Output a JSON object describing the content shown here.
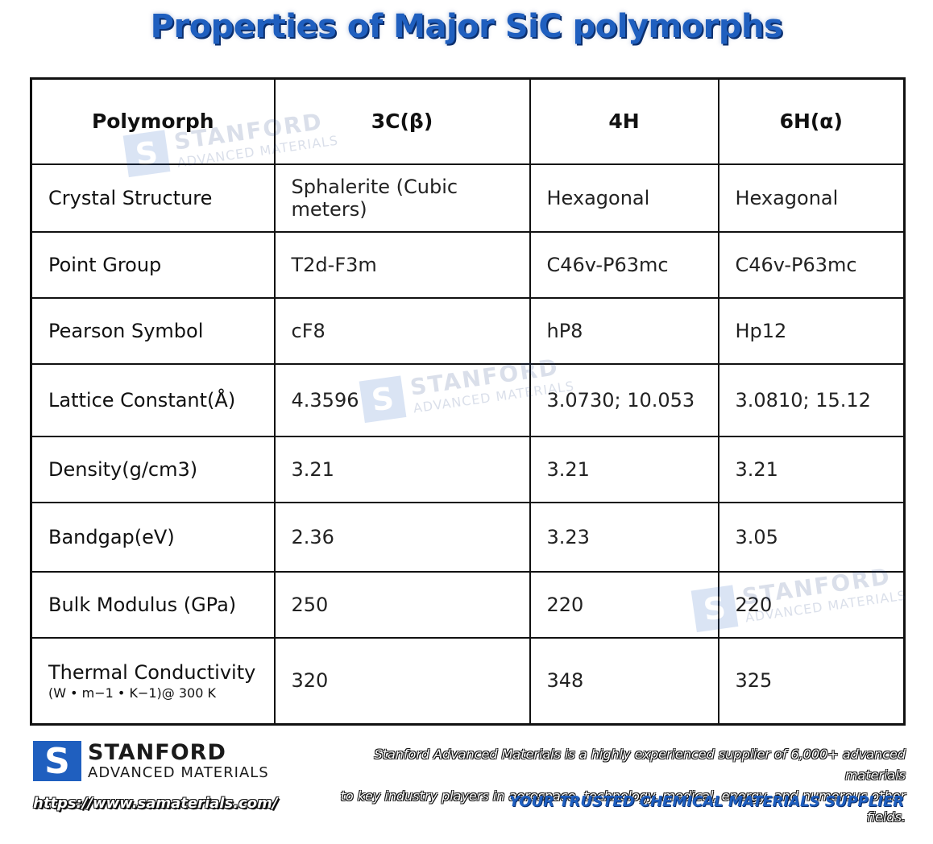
{
  "title": "Properties of Major SiC polymorphs",
  "table": {
    "headers": [
      "Polymorph",
      "3C(β)",
      "4H",
      "6H(α)"
    ],
    "rows": [
      {
        "label": "Crystal Structure",
        "values": [
          "Sphalerite (Cubic meters)",
          "Hexagonal",
          "Hexagonal"
        ]
      },
      {
        "label": "Point Group",
        "values": [
          "T2d-F3m",
          "C46v-P63mc",
          "C46v-P63mc"
        ]
      },
      {
        "label": "Pearson Symbol",
        "values": [
          "cF8",
          "hP8",
          "Hp12"
        ]
      },
      {
        "label": "Lattice Constant(Å)",
        "values": [
          "4.3596",
          "3.0730; 10.053",
          "3.0810; 15.12"
        ]
      },
      {
        "label": "Density(g/cm3)",
        "values": [
          "3.21",
          "3.21",
          "3.21"
        ]
      },
      {
        "label": "Bandgap(eV)",
        "values": [
          "2.36",
          "3.23",
          "3.05"
        ]
      },
      {
        "label": "Bulk Modulus (GPa)",
        "values": [
          "250",
          "220",
          "220"
        ]
      },
      {
        "label": "Thermal Conductivity",
        "sublabel": "(W • m−1 • K−1)@ 300 K",
        "values": [
          "320",
          "348",
          "325"
        ]
      }
    ]
  },
  "watermark": {
    "line1": "STANFORD",
    "line2": "ADVANCED MATERIALS",
    "mark": "S"
  },
  "footer": {
    "logo_mark": "S",
    "logo_line1": "STANFORD",
    "logo_line2": "ADVANCED MATERIALS",
    "url": "https://www.samaterials.com/",
    "blurb_line1": "Stanford Advanced Materials is a highly experienced supplier of 6,000+ advanced materials",
    "blurb_line2": "to key industry players in aerospace, technology, medical, energy, and numerous other fields.",
    "slogan": "YOUR TRUSTED CHEMICAL MATERIALS SUPPLIER"
  },
  "colors": {
    "brand_blue": "#1f5fbf",
    "dark_blue": "#0b2f6e",
    "border": "#111111"
  }
}
